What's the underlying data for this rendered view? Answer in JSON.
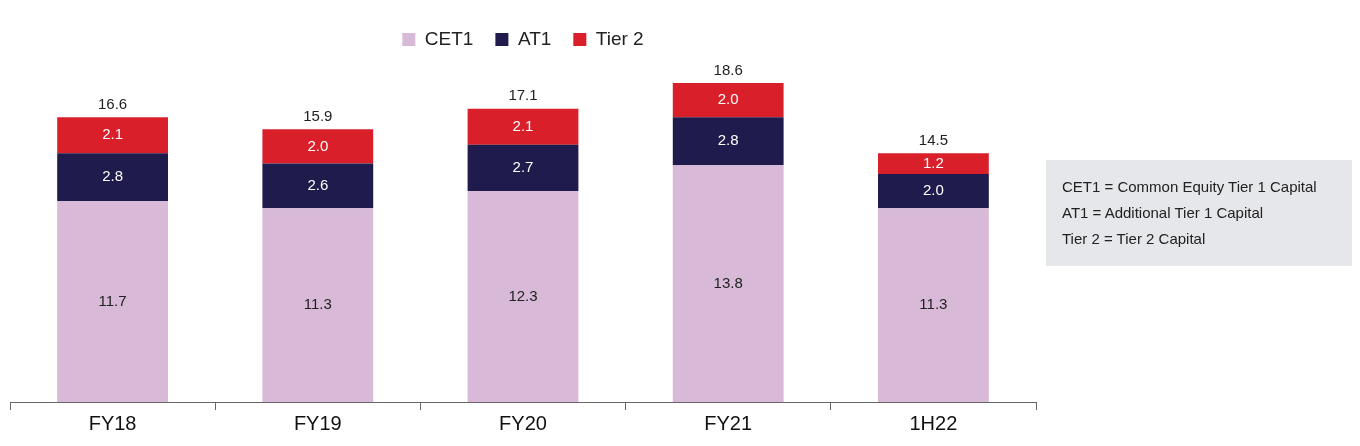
{
  "chart_data": {
    "type": "bar",
    "stacked": true,
    "categories": [
      "FY18",
      "FY19",
      "FY20",
      "FY21",
      "1H22"
    ],
    "series": [
      {
        "name": "CET1",
        "color": "#d8b9d8",
        "values": [
          11.7,
          11.3,
          12.3,
          13.8,
          11.3
        ],
        "value_labels": [
          "11.7",
          "11.3",
          "12.3",
          "13.8",
          "11.3"
        ]
      },
      {
        "name": "AT1",
        "color": "#1f1b4d",
        "values": [
          2.8,
          2.6,
          2.7,
          2.8,
          2.0
        ],
        "value_labels": [
          "2.8",
          "2.6",
          "2.7",
          "2.8",
          "2.0"
        ]
      },
      {
        "name": "Tier 2",
        "color": "#d9202a",
        "values": [
          2.1,
          2.0,
          2.1,
          2.0,
          1.2
        ],
        "value_labels": [
          "2.1",
          "2.0",
          "2.1",
          "2.0",
          "1.2"
        ]
      }
    ],
    "totals": [
      "16.6",
      "15.9",
      "17.1",
      "18.6",
      "14.5"
    ],
    "legend": "top",
    "grid": false,
    "annotations": [
      "CET1 = Common Equity Tier 1 Capital",
      "AT1 = Additional Tier 1 Capital",
      "Tier 2 = Tier 2 Capital"
    ]
  }
}
